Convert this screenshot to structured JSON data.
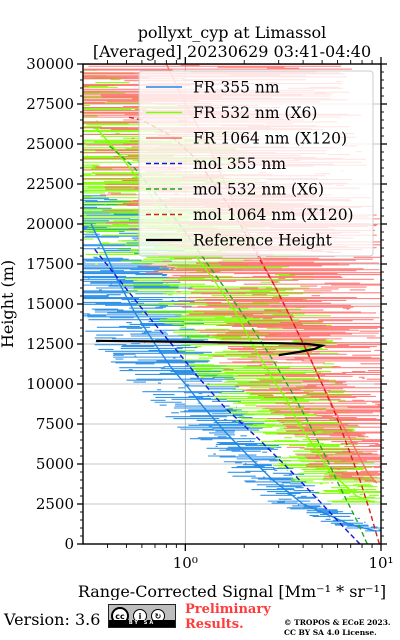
{
  "chart_data": {
    "type": "line",
    "title": "pollyxt_cyp at Limassol",
    "subtitle": "[Averaged] 20230629 03:41-04:40",
    "xlabel": "Range-Corrected Signal [Mm⁻¹ * sr⁻¹]",
    "ylabel": "Height (m)",
    "xscale": "log",
    "xlim": [
      0.3,
      10
    ],
    "ylim": [
      0,
      30000
    ],
    "x_ticks": [
      {
        "value": 1,
        "label": "10⁰"
      },
      {
        "value": 10,
        "label": "10¹"
      }
    ],
    "y_ticks": [
      0,
      2500,
      5000,
      7500,
      10000,
      12500,
      15000,
      17500,
      20000,
      22500,
      25000,
      27500,
      30000
    ],
    "grid": true,
    "legend_position": "top-right",
    "series": [
      {
        "name": "FR 355 nm",
        "color": "#1e88e5",
        "style": "solid",
        "points": [
          [
            9.5,
            800
          ],
          [
            7,
            1200
          ],
          [
            4,
            2500
          ],
          [
            2.8,
            4000
          ],
          [
            2.1,
            5500
          ],
          [
            1.6,
            7000
          ],
          [
            1.25,
            8500
          ],
          [
            1.0,
            10000
          ],
          [
            0.85,
            11000
          ],
          [
            0.7,
            12500
          ],
          [
            0.55,
            14500
          ],
          [
            0.45,
            16500
          ],
          [
            0.38,
            18500
          ],
          [
            0.33,
            20000
          ]
        ]
      },
      {
        "name": "FR 532 nm (X6)",
        "color": "#7fff00",
        "style": "solid",
        "points": [
          [
            9.2,
            2600
          ],
          [
            7.5,
            3000
          ],
          [
            5.5,
            4500
          ],
          [
            4.6,
            6000
          ],
          [
            3.8,
            7500
          ],
          [
            3.3,
            9000
          ],
          [
            2.9,
            10000
          ],
          [
            2.6,
            11000
          ],
          [
            2.2,
            12500
          ],
          [
            1.8,
            14500
          ],
          [
            1.4,
            16500
          ],
          [
            1.05,
            18500
          ],
          [
            0.8,
            20500
          ],
          [
            0.6,
            22500
          ],
          [
            0.45,
            24500
          ],
          [
            0.35,
            26000
          ]
        ]
      },
      {
        "name": "FR 1064 nm (X120)",
        "color": "#ff6b6b",
        "style": "solid",
        "points": [
          [
            9.5,
            3800
          ],
          [
            8.5,
            4500
          ],
          [
            7,
            6500
          ],
          [
            6,
            8000
          ],
          [
            5,
            10000
          ],
          [
            4,
            12500
          ],
          [
            3.2,
            15000
          ],
          [
            2.5,
            17500
          ],
          [
            2,
            20000
          ],
          [
            1.6,
            22500
          ],
          [
            1.3,
            25000
          ],
          [
            1.0,
            27500
          ],
          [
            0.8,
            30000
          ]
        ]
      },
      {
        "name": "mol 355 nm",
        "color": "#1515d4",
        "style": "dashed",
        "points": [
          [
            7.8,
            0
          ],
          [
            6.5,
            1000
          ],
          [
            5.0,
            2500
          ],
          [
            3.5,
            4500
          ],
          [
            2.4,
            6500
          ],
          [
            1.6,
            8500
          ],
          [
            1.15,
            10500
          ],
          [
            0.85,
            12500
          ],
          [
            0.62,
            14500
          ],
          [
            0.46,
            16500
          ],
          [
            0.34,
            18500
          ]
        ]
      },
      {
        "name": "mol 532 nm (X6)",
        "color": "#1fa81f",
        "style": "dashed",
        "points": [
          [
            8.5,
            0
          ],
          [
            7.5,
            1500
          ],
          [
            6.2,
            3500
          ],
          [
            5.2,
            5500
          ],
          [
            4.3,
            7500
          ],
          [
            3.5,
            9500
          ],
          [
            2.8,
            11500
          ],
          [
            2.2,
            13500
          ],
          [
            1.7,
            15500
          ],
          [
            1.3,
            17500
          ],
          [
            1.0,
            19500
          ],
          [
            0.75,
            21500
          ],
          [
            0.55,
            23500
          ],
          [
            0.4,
            25000
          ]
        ]
      },
      {
        "name": "mol 1064 nm (X120)",
        "color": "#d81e1e",
        "style": "dashed",
        "points": [
          [
            9.8,
            0
          ],
          [
            8.8,
            2000
          ],
          [
            7.8,
            4000
          ],
          [
            6.8,
            6000
          ],
          [
            5.9,
            8000
          ],
          [
            5.0,
            10000
          ],
          [
            4.2,
            12000
          ],
          [
            3.5,
            14000
          ],
          [
            2.9,
            16000
          ],
          [
            2.35,
            18000
          ],
          [
            1.9,
            20000
          ],
          [
            1.5,
            22000
          ],
          [
            1.15,
            24000
          ],
          [
            0.85,
            25500
          ],
          [
            0.6,
            26500
          ],
          [
            0.5,
            26700
          ]
        ]
      },
      {
        "name": "Reference Height",
        "color": "#000000",
        "style": "solid",
        "points": [
          [
            0.35,
            12700
          ],
          [
            0.8,
            12650
          ],
          [
            1.6,
            12600
          ],
          [
            3.0,
            12550
          ],
          [
            4.2,
            12500
          ],
          [
            5.0,
            12400
          ],
          [
            4.6,
            12200
          ],
          [
            3.8,
            12000
          ],
          [
            3.0,
            11800
          ]
        ]
      }
    ]
  },
  "footer": {
    "version": "Version: 3.6",
    "license_badge_text": "BY SA",
    "preliminary_line1": "Preliminary",
    "preliminary_line2": "Results.",
    "copyright_line1": "© TROPOS & ECoE 2023.",
    "copyright_line2": "CC BY SA 4.0 License."
  }
}
